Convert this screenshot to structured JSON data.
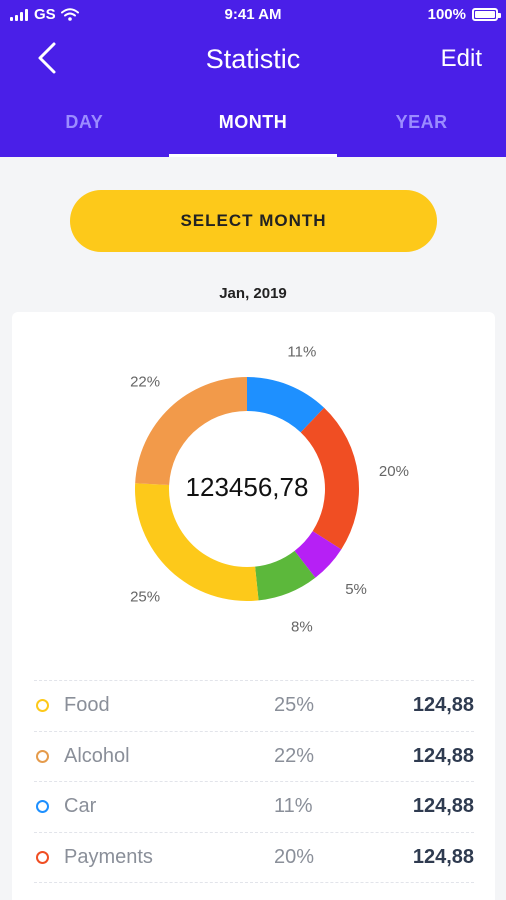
{
  "status": {
    "carrier": "GS",
    "time": "9:41 AM",
    "battery": "100%"
  },
  "header": {
    "title": "Statistic",
    "edit_label": "Edit"
  },
  "tabs": [
    {
      "label": "DAY",
      "active": false
    },
    {
      "label": "MONTH",
      "active": true
    },
    {
      "label": "YEAR",
      "active": false
    }
  ],
  "select_button_label": "SELECT MONTH",
  "period": "Jan, 2019",
  "total": "123456,78",
  "colors": {
    "accent": "#4a1fe8",
    "button": "#fdc91a"
  },
  "chart_data": {
    "type": "pie",
    "slices": [
      {
        "label": "11%",
        "value": 11,
        "color": "#1e90ff"
      },
      {
        "label": "20%",
        "value": 20,
        "color": "#f04e23"
      },
      {
        "label": "5%",
        "value": 5,
        "color": "#b620f5"
      },
      {
        "label": "8%",
        "value": 8,
        "color": "#5cb83b"
      },
      {
        "label": "25%",
        "value": 25,
        "color": "#fdc91a"
      },
      {
        "label": "22%",
        "value": 22,
        "color": "#f29a4a"
      }
    ]
  },
  "categories": [
    {
      "name": "Food",
      "percent": "25%",
      "amount": "124,88",
      "color": "#fdc91a"
    },
    {
      "name": "Alcohol",
      "percent": "22%",
      "amount": "124,88",
      "color": "#e59b4c"
    },
    {
      "name": "Car",
      "percent": "11%",
      "amount": "124,88",
      "color": "#1e90ff"
    },
    {
      "name": "Payments",
      "percent": "20%",
      "amount": "124,88",
      "color": "#f04e23"
    },
    {
      "name": "",
      "percent": "",
      "amount": "",
      "color": "#b620f5"
    }
  ]
}
